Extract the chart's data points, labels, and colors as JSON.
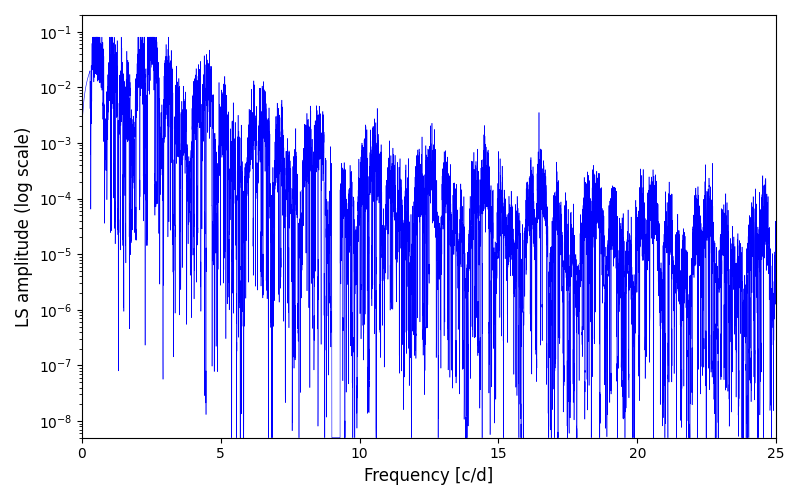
{
  "xlabel": "Frequency [c/d]",
  "ylabel": "LS amplitude (log scale)",
  "line_color": "blue",
  "xlim": [
    0,
    25
  ],
  "ylim": [
    5e-09,
    0.2
  ],
  "background_color": "#ffffff",
  "figsize": [
    8.0,
    5.0
  ],
  "dpi": 100,
  "seed": 77
}
